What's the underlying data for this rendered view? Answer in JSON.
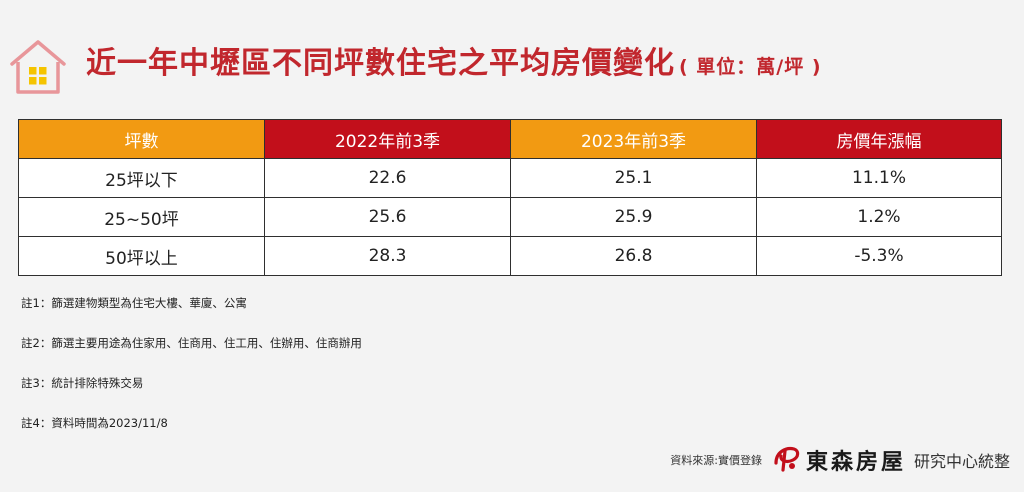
{
  "header": {
    "title": "近一年中壢區不同坪數住宅之平均房價變化",
    "unit": "( 單位：萬/坪 )",
    "icon": "house-icon",
    "icon_color": "#e8969a",
    "window_color": "#f5c400"
  },
  "table": {
    "headers": [
      "坪數",
      "2022年前3季",
      "2023年前3季",
      "房價年漲幅"
    ],
    "header_colors": [
      "#f29a12",
      "#c20f1b",
      "#f29a12",
      "#c20f1b"
    ],
    "rows": [
      [
        "25坪以下",
        "22.6",
        "25.1",
        "11.1%"
      ],
      [
        "25~50坪",
        "25.6",
        "25.9",
        "1.2%"
      ],
      [
        "50坪以上",
        "28.3",
        "26.8",
        "-5.3%"
      ]
    ]
  },
  "notes": [
    "註1：篩選建物類型為住宅大樓、華廈、公寓",
    "註2：篩選主要用途為住家用、住商用、住工用、住辦用、住商辦用",
    "註3：統計排除特殊交易",
    "註4：資料時間為2023/11/8"
  ],
  "footer": {
    "source": "資料來源:實價登錄",
    "brand": "東森房屋",
    "center": "研究中心統整",
    "logo_color": "#c20f1b"
  }
}
